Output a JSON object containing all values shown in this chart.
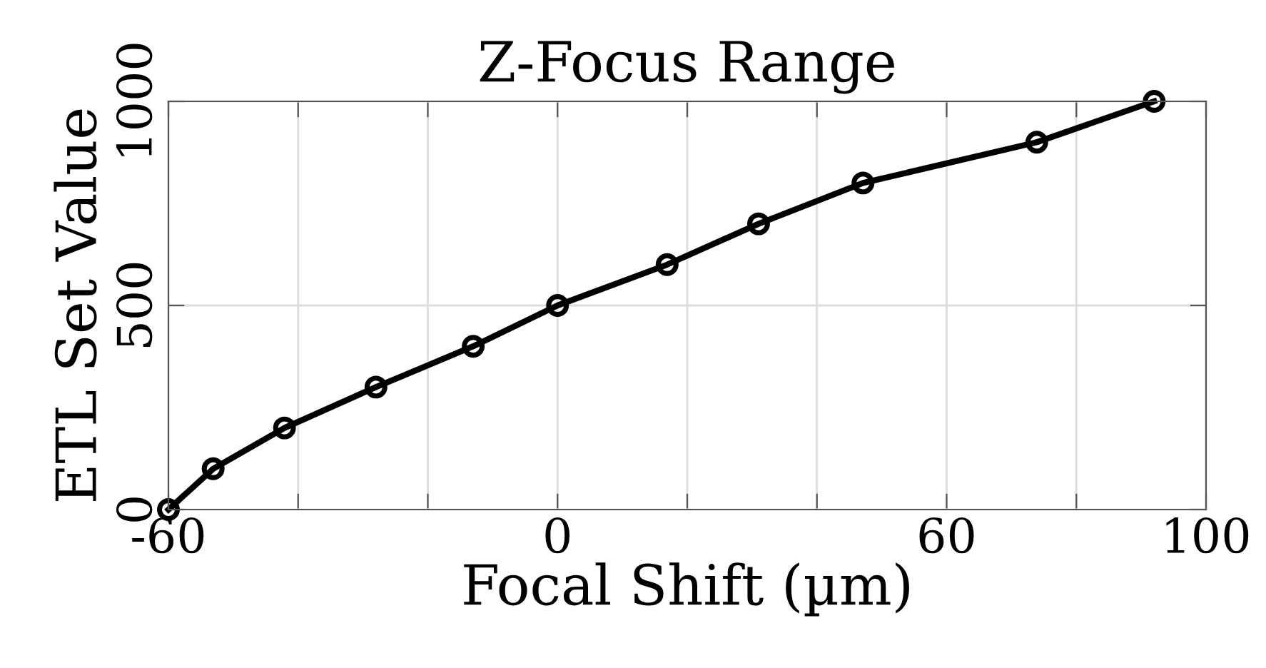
{
  "chart_data": {
    "type": "line",
    "title": "Z-Focus Range",
    "xlabel": "Focal Shift (µm)",
    "ylabel": "ETL Set Value",
    "x": [
      -60,
      -53.1,
      -42.1,
      -28,
      -13,
      0,
      16.9,
      31,
      47.1,
      73.9,
      92
    ],
    "series": [
      {
        "color": "#000000",
        "values": [
          0,
          100,
          200,
          300,
          400,
          500,
          600,
          700,
          800,
          900,
          1000
        ]
      }
    ],
    "xlim": [
      -60,
      100
    ],
    "xticks": [
      -60,
      {
        "value": -40,
        "label": null
      },
      {
        "value": -20,
        "label": null
      },
      0,
      {
        "value": 20,
        "label": null
      },
      {
        "value": 40,
        "label": null
      },
      60,
      {
        "value": 80,
        "label": null
      },
      100
    ],
    "ylim": [
      0,
      1000
    ],
    "yticks": [
      0,
      500,
      1000
    ],
    "grid": true,
    "marker": "circle",
    "line_style": "solid"
  }
}
